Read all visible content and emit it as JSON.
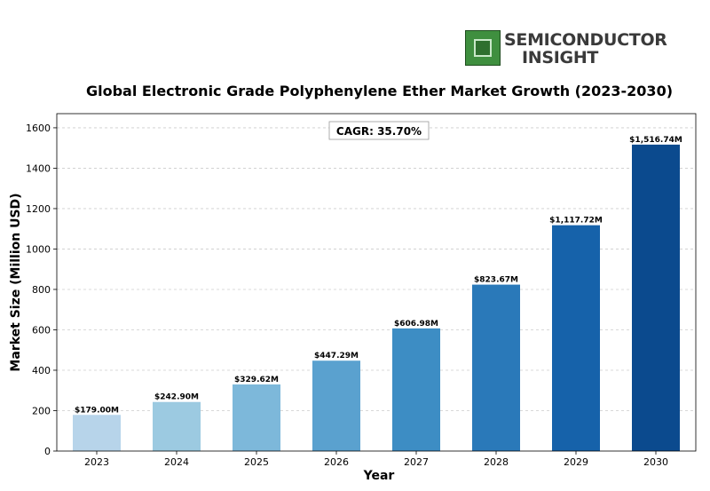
{
  "logo": {
    "line1": "SEMICONDUCTOR",
    "line2": "INSIGHT",
    "icon": "chip-icon"
  },
  "chart_data": {
    "type": "bar",
    "title": "Global Electronic Grade Polyphenylene Ether Market Growth (2023-2030)",
    "xlabel": "Year",
    "ylabel": "Market Size (Million USD)",
    "categories": [
      "2023",
      "2024",
      "2025",
      "2026",
      "2027",
      "2028",
      "2029",
      "2030"
    ],
    "values": [
      179.0,
      242.9,
      329.62,
      447.29,
      606.98,
      823.67,
      1117.72,
      1516.74
    ],
    "data_labels": [
      "$179.00M",
      "$242.90M",
      "$329.62M",
      "$447.29M",
      "$606.98M",
      "$823.67M",
      "$1,117.72M",
      "$1,516.74M"
    ],
    "ylim": [
      0,
      1670
    ],
    "yticks": [
      0,
      200,
      400,
      600,
      800,
      1000,
      1200,
      1400,
      1600
    ],
    "grid": true,
    "annotation": "CAGR: 35.70%",
    "colors": [
      "#b7d4ea",
      "#9ccae1",
      "#7db8da",
      "#5aa1cf",
      "#3d8dc4",
      "#2a79b9",
      "#1662aa",
      "#0b4a8e"
    ]
  }
}
